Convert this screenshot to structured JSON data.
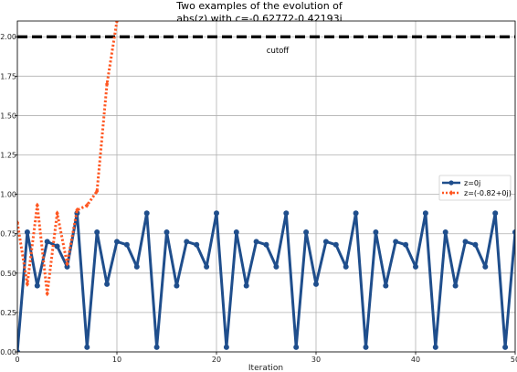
{
  "chart_data": {
    "type": "line",
    "title_lines": [
      "Two examples of the evolution of",
      "abs(z) with c=-0.62772-0.42193j"
    ],
    "xlabel": "Iteration",
    "ylabel": "",
    "xlim": [
      0,
      50
    ],
    "ylim": [
      0,
      2.1
    ],
    "x_ticks": [
      0,
      10,
      20,
      30,
      40,
      50
    ],
    "y_ticks": [
      0.0,
      0.25,
      0.5,
      0.75,
      1.0,
      1.25,
      1.5,
      1.75,
      2.0
    ],
    "y_tick_labels": [
      "0.00",
      "0.25",
      "0.50",
      "0.75",
      "1.00",
      "1.25",
      "1.50",
      "1.75",
      "2.00"
    ],
    "grid": true,
    "legend_position": "right",
    "cutoff": {
      "y": 2.0,
      "label": "cutoff",
      "color": "#000000"
    },
    "series": [
      {
        "name": "z=0j",
        "color": "#1f4e8c",
        "style": "solid",
        "marker": "circle",
        "x": [
          0,
          1,
          2,
          3,
          4,
          5,
          6,
          7,
          8,
          9,
          10,
          11,
          12,
          13,
          14,
          15,
          16,
          17,
          18,
          19,
          20,
          21,
          22,
          23,
          24,
          25,
          26,
          27,
          28,
          29,
          30,
          31,
          32,
          33,
          34,
          35,
          36,
          37,
          38,
          39,
          40,
          41,
          42,
          43,
          44,
          45,
          46,
          47,
          48,
          49,
          50
        ],
        "y": [
          0.0,
          0.76,
          0.42,
          0.7,
          0.67,
          0.54,
          0.88,
          0.03,
          0.76,
          0.43,
          0.7,
          0.68,
          0.54,
          0.88,
          0.03,
          0.76,
          0.42,
          0.7,
          0.68,
          0.54,
          0.88,
          0.03,
          0.76,
          0.42,
          0.7,
          0.68,
          0.54,
          0.88,
          0.03,
          0.76,
          0.43,
          0.7,
          0.68,
          0.54,
          0.88,
          0.03,
          0.76,
          0.42,
          0.7,
          0.68,
          0.54,
          0.88,
          0.03,
          0.76,
          0.42,
          0.7,
          0.68,
          0.54,
          0.88,
          0.03,
          0.76
        ]
      },
      {
        "name": "z=(-0.82+0j)",
        "color": "#ff5722",
        "style": "dotted",
        "marker": "diamond",
        "x": [
          0,
          1,
          2,
          3,
          4,
          5,
          6,
          7,
          8,
          9,
          10
        ],
        "y": [
          0.82,
          0.43,
          0.93,
          0.37,
          0.88,
          0.56,
          0.9,
          0.93,
          1.02,
          1.7,
          2.1
        ]
      }
    ]
  }
}
